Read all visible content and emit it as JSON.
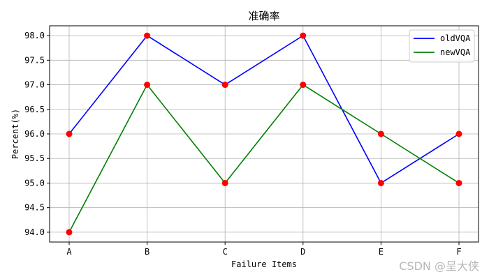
{
  "chart_data": {
    "type": "line",
    "title": "准确率",
    "xlabel": "Failure Items",
    "ylabel": "Percent(%)",
    "categories": [
      "A",
      "B",
      "C",
      "D",
      "E",
      "F"
    ],
    "series": [
      {
        "name": "oldVQA",
        "color": "#0000ff",
        "values": [
          96.0,
          98.0,
          97.0,
          98.0,
          95.0,
          96.0
        ]
      },
      {
        "name": "newVQA",
        "color": "#008000",
        "values": [
          94.0,
          97.0,
          95.0,
          97.0,
          96.0,
          95.0
        ]
      }
    ],
    "marker_color": "#ff0000",
    "ylim": [
      93.8,
      98.2
    ],
    "yticks": [
      "94.0",
      "94.5",
      "95.0",
      "95.5",
      "96.0",
      "96.5",
      "97.0",
      "97.5",
      "98.0"
    ],
    "grid": true,
    "legend_position": "top-right"
  },
  "watermark": "CSDN @呈大侠"
}
